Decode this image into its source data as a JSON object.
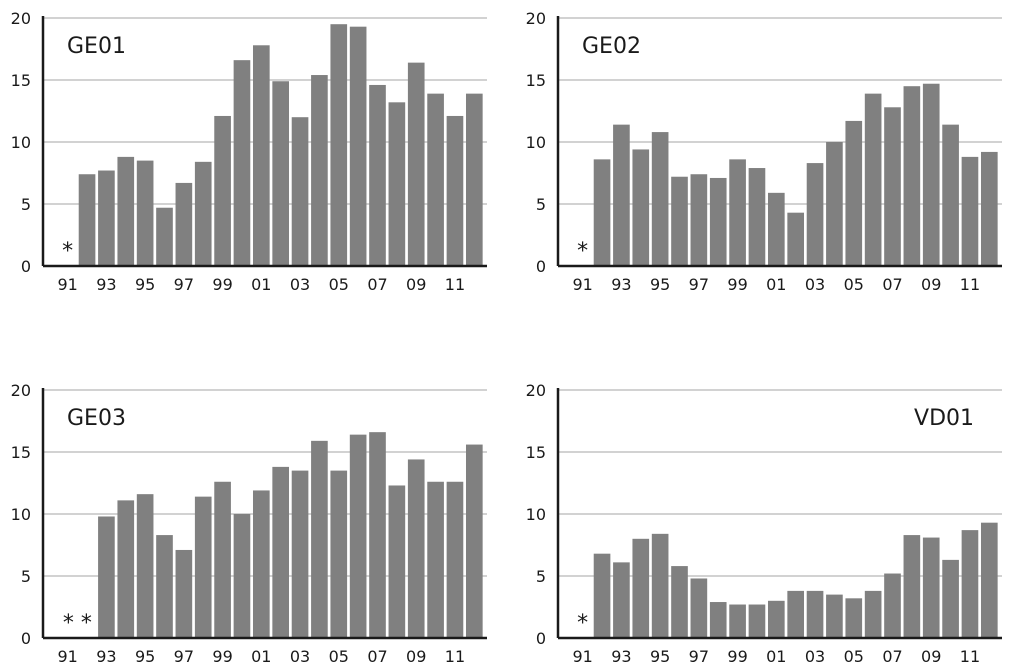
{
  "chart_data": [
    {
      "type": "bar",
      "title": "GE01",
      "title_position": "top-left",
      "x": [
        1991,
        1992,
        1993,
        1994,
        1995,
        1996,
        1997,
        1998,
        1999,
        2000,
        2001,
        2002,
        2003,
        2004,
        2005,
        2006,
        2007,
        2008,
        2009,
        2010,
        2011,
        2012
      ],
      "values": [
        null,
        7.4,
        7.7,
        8.8,
        8.5,
        4.7,
        6.7,
        8.4,
        12.1,
        16.6,
        17.8,
        14.9,
        12.0,
        15.4,
        19.5,
        19.3,
        14.6,
        13.2,
        16.4,
        13.9,
        12.1,
        13.9
      ],
      "missing_marker": "*",
      "missing_mark_text": "*",
      "x_tick_labels": [
        "91",
        "93",
        "95",
        "97",
        "99",
        "01",
        "03",
        "05",
        "07",
        "09",
        "11"
      ],
      "y_ticks": [
        0,
        5,
        10,
        15,
        20
      ],
      "ylim": [
        0,
        20
      ],
      "grid": true
    },
    {
      "type": "bar",
      "title": "GE02",
      "title_position": "top-left",
      "x": [
        1991,
        1992,
        1993,
        1994,
        1995,
        1996,
        1997,
        1998,
        1999,
        2000,
        2001,
        2002,
        2003,
        2004,
        2005,
        2006,
        2007,
        2008,
        2009,
        2010,
        2011,
        2012
      ],
      "values": [
        null,
        8.6,
        11.4,
        9.4,
        10.8,
        7.2,
        7.4,
        7.1,
        8.6,
        7.9,
        5.9,
        4.3,
        8.3,
        10.0,
        11.7,
        13.9,
        12.8,
        14.5,
        14.7,
        11.4,
        8.8,
        9.2
      ],
      "missing_marker": "*",
      "missing_mark_text": "*",
      "x_tick_labels": [
        "91",
        "93",
        "95",
        "97",
        "99",
        "01",
        "03",
        "05",
        "07",
        "09",
        "11"
      ],
      "y_ticks": [
        0,
        5,
        10,
        15,
        20
      ],
      "ylim": [
        0,
        20
      ],
      "grid": true
    },
    {
      "type": "bar",
      "title": "GE03",
      "title_position": "top-left",
      "x": [
        1991,
        1992,
        1993,
        1994,
        1995,
        1996,
        1997,
        1998,
        1999,
        2000,
        2001,
        2002,
        2003,
        2004,
        2005,
        2006,
        2007,
        2008,
        2009,
        2010,
        2011,
        2012
      ],
      "values": [
        null,
        null,
        9.8,
        11.1,
        11.6,
        8.3,
        7.1,
        11.4,
        12.6,
        10.0,
        11.9,
        13.8,
        13.5,
        15.9,
        13.5,
        16.4,
        16.6,
        12.3,
        14.4,
        12.6,
        12.6,
        15.6
      ],
      "missing_marker": "*",
      "missing_mark_text": "* *",
      "x_tick_labels": [
        "91",
        "93",
        "95",
        "97",
        "99",
        "01",
        "03",
        "05",
        "07",
        "09",
        "11"
      ],
      "y_ticks": [
        0,
        5,
        10,
        15,
        20
      ],
      "ylim": [
        0,
        20
      ],
      "grid": true
    },
    {
      "type": "bar",
      "title": "VD01",
      "title_position": "top-right",
      "x": [
        1991,
        1992,
        1993,
        1994,
        1995,
        1996,
        1997,
        1998,
        1999,
        2000,
        2001,
        2002,
        2003,
        2004,
        2005,
        2006,
        2007,
        2008,
        2009,
        2010,
        2011,
        2012
      ],
      "values": [
        null,
        6.8,
        6.1,
        8.0,
        8.4,
        5.8,
        4.8,
        2.9,
        2.7,
        2.7,
        3.0,
        3.8,
        3.8,
        3.5,
        3.2,
        3.8,
        5.2,
        8.3,
        8.1,
        6.3,
        8.7,
        9.3
      ],
      "missing_marker": "*",
      "missing_mark_text": "*",
      "x_tick_labels": [
        "91",
        "93",
        "95",
        "97",
        "99",
        "01",
        "03",
        "05",
        "07",
        "09",
        "11"
      ],
      "y_ticks": [
        0,
        5,
        10,
        15,
        20
      ],
      "ylim": [
        0,
        20
      ],
      "grid": true
    }
  ],
  "colors": {
    "bar": "#808080",
    "grid": "#a6a6a6",
    "axis": "#1a1a1a",
    "text": "#1a1a1a"
  }
}
